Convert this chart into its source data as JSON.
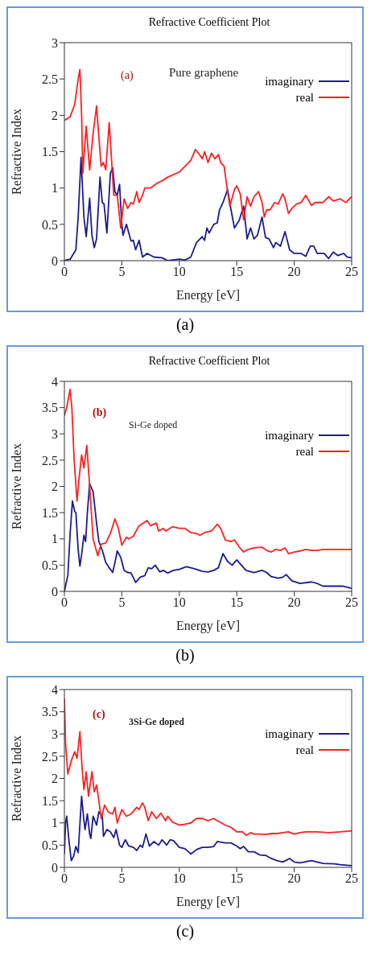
{
  "chart_data": [
    {
      "type": "line",
      "title": "Refractive Coefficient Plot",
      "xlabel": "Energy [eV]",
      "ylabel": "Refractive Index",
      "xlim": [
        0,
        25
      ],
      "xticks": [
        0,
        5,
        10,
        15,
        20,
        25
      ],
      "ylim": [
        0,
        3
      ],
      "yticks": [
        0,
        0.5,
        1,
        1.5,
        2,
        2.5,
        3
      ],
      "legend": "top right",
      "annotations": [
        "(a)",
        "Pure graphene",
        "(a)"
      ],
      "series": [
        {
          "name": "imaginary",
          "color": "#1c1c8f",
          "x": [
            0,
            0.5,
            1.0,
            1.2,
            1.45,
            1.7,
            1.9,
            2.2,
            2.4,
            2.6,
            2.8,
            3.1,
            3.3,
            3.45,
            3.7,
            4.0,
            4.2,
            4.4,
            4.6,
            4.8,
            5.0,
            5.1,
            5.4,
            5.8,
            6.0,
            6.2,
            6.5,
            6.8,
            7.2,
            7.8,
            8.5,
            9.0,
            10,
            10.5,
            11.0,
            11.5,
            12,
            12.2,
            12.4,
            12.6,
            13,
            13.3,
            13.5,
            13.8,
            14.2,
            14.5,
            14.8,
            15.2,
            15.6,
            15.9,
            16.2,
            16.5,
            16.8,
            17.2,
            17.5,
            17.8,
            18.2,
            18.4,
            18.8,
            19.2,
            19.6,
            20,
            20.6,
            21,
            21.4,
            21.7,
            22,
            22.6,
            23,
            23.4,
            23.8,
            24.3,
            24.6,
            25
          ],
          "values": [
            0,
            0.02,
            0.15,
            0.6,
            1.42,
            0.6,
            0.33,
            0.86,
            0.35,
            0.18,
            0.3,
            1.15,
            0.8,
            0.78,
            0.38,
            1.2,
            1.28,
            0.95,
            0.9,
            1.05,
            0.5,
            0.35,
            0.5,
            0.27,
            0.28,
            0.15,
            0.28,
            0.05,
            0.1,
            0.05,
            0.04,
            0,
            0.02,
            0.01,
            0.05,
            0.25,
            0.33,
            0.28,
            0.45,
            0.38,
            0.5,
            0.52,
            0.7,
            0.8,
            0.98,
            0.7,
            0.45,
            0.55,
            0.75,
            0.3,
            0.45,
            0.3,
            0.35,
            0.6,
            0.32,
            0.3,
            0.18,
            0.25,
            0.2,
            0.4,
            0.15,
            0.1,
            0.1,
            0.06,
            0.2,
            0.2,
            0.1,
            0.1,
            0.03,
            0.12,
            0.07,
            0.1,
            0.05,
            0.04
          ]
        },
        {
          "name": "real",
          "color": "#ff2020",
          "x": [
            0,
            0.5,
            0.9,
            1.2,
            1.35,
            1.5,
            1.6,
            1.9,
            2.2,
            2.5,
            2.8,
            3.0,
            3.2,
            3.4,
            3.6,
            3.9,
            4.1,
            4.3,
            4.6,
            4.9,
            5.2,
            5.5,
            5.8,
            6.0,
            6.3,
            6.5,
            6.8,
            7.0,
            7.5,
            8.0,
            8.5,
            9.0,
            10,
            10.5,
            11,
            11.4,
            11.8,
            12,
            12.2,
            12.5,
            12.8,
            13.1,
            13.4,
            13.6,
            13.9,
            14.2,
            14.4,
            14.8,
            15,
            15.3,
            15.6,
            15.9,
            16.2,
            16.5,
            16.9,
            17.2,
            17.4,
            17.6,
            17.9,
            18.3,
            18.6,
            19,
            19.2,
            19.5,
            19.8,
            20.2,
            20.6,
            21,
            21.5,
            21.8,
            22.5,
            23,
            23.4,
            24,
            24.5,
            25
          ],
          "values": [
            1.93,
            1.98,
            2.15,
            2.5,
            2.63,
            2.0,
            1.2,
            1.85,
            1.25,
            1.75,
            2.13,
            1.7,
            1.3,
            1.35,
            1.25,
            1.9,
            1.4,
            0.9,
            0.9,
            0.45,
            0.85,
            0.72,
            0.8,
            0.78,
            0.95,
            0.8,
            0.9,
            1.0,
            1.0,
            1.06,
            1.1,
            1.15,
            1.22,
            1.3,
            1.38,
            1.53,
            1.45,
            1.4,
            1.5,
            1.35,
            1.48,
            1.4,
            1.46,
            1.35,
            1.3,
            0.95,
            0.75,
            0.98,
            1.03,
            0.92,
            0.56,
            0.88,
            0.75,
            0.88,
            0.95,
            0.8,
            0.6,
            0.7,
            0.7,
            0.8,
            0.78,
            0.92,
            0.85,
            0.65,
            0.72,
            0.78,
            0.8,
            0.9,
            0.76,
            0.8,
            0.8,
            0.88,
            0.82,
            0.85,
            0.8,
            0.88
          ]
        }
      ]
    },
    {
      "type": "line",
      "title": "Refractive Coefficient Plot",
      "xlabel": "Energy [eV]",
      "ylabel": "Refractive Index",
      "xlim": [
        0,
        25
      ],
      "xticks": [
        0,
        5,
        10,
        15,
        20,
        25
      ],
      "ylim": [
        0,
        4
      ],
      "yticks": [
        0,
        0.5,
        1,
        1.5,
        2,
        2.5,
        3,
        3.5,
        4
      ],
      "legend": "top right",
      "annotations": [
        "(b)",
        "Si-Ge doped",
        "(b)"
      ],
      "series": [
        {
          "name": "imaginary",
          "color": "#1c1c8f",
          "x": [
            0,
            0.3,
            0.5,
            0.7,
            0.9,
            1.0,
            1.2,
            1.35,
            1.5,
            1.7,
            1.85,
            2.0,
            2.2,
            2.5,
            2.8,
            3.0,
            3.3,
            3.6,
            3.9,
            4.2,
            4.4,
            4.6,
            4.9,
            5.2,
            5.5,
            5.8,
            6.2,
            6.6,
            7.0,
            7.3,
            7.6,
            7.9,
            8.3,
            8.6,
            9.0,
            9.5,
            10,
            10.6,
            11,
            11.5,
            12,
            12.5,
            13,
            13.4,
            13.8,
            14.2,
            14.6,
            15,
            15.4,
            15.8,
            16.5,
            17.2,
            17.6,
            18,
            18.6,
            19,
            19.3,
            19.8,
            20.5,
            21.5,
            22,
            22.5,
            23.5,
            24.2,
            25
          ],
          "values": [
            0,
            0.3,
            1.1,
            1.72,
            1.52,
            1.5,
            0.8,
            0.48,
            0.7,
            1.07,
            0.95,
            1.5,
            2.05,
            1.9,
            1.3,
            0.95,
            0.78,
            0.55,
            0.45,
            0.36,
            0.55,
            0.77,
            0.65,
            0.4,
            0.36,
            0.35,
            0.17,
            0.27,
            0.3,
            0.45,
            0.43,
            0.5,
            0.37,
            0.4,
            0.35,
            0.4,
            0.42,
            0.47,
            0.45,
            0.42,
            0.38,
            0.37,
            0.4,
            0.45,
            0.72,
            0.57,
            0.5,
            0.6,
            0.5,
            0.4,
            0.36,
            0.4,
            0.36,
            0.28,
            0.25,
            0.27,
            0.32,
            0.2,
            0.15,
            0.18,
            0.15,
            0.1,
            0.1,
            0.1,
            0.06
          ]
        },
        {
          "name": "real",
          "color": "#ff2020",
          "x": [
            0,
            0.2,
            0.5,
            0.65,
            0.85,
            1.1,
            1.3,
            1.5,
            1.7,
            1.95,
            2.2,
            2.5,
            2.9,
            3.2,
            3.6,
            4.0,
            4.4,
            4.7,
            5.0,
            5.4,
            5.6,
            6.0,
            6.5,
            7.2,
            7.5,
            8.0,
            8.2,
            8.6,
            8.8,
            9.4,
            10,
            10.5,
            11,
            11.5,
            11.8,
            12.2,
            12.8,
            13.3,
            13.6,
            14,
            14.5,
            14.8,
            15.2,
            15.6,
            16,
            16.5,
            17.2,
            17.6,
            18,
            18.4,
            18.8,
            19.2,
            19.5,
            20,
            20.5,
            21,
            21.5,
            22,
            22.5,
            23,
            24,
            25
          ],
          "values": [
            3.35,
            3.5,
            3.85,
            3.5,
            2.5,
            1.72,
            2.2,
            2.6,
            2.35,
            2.78,
            2.0,
            1.0,
            0.68,
            0.9,
            0.92,
            1.1,
            1.38,
            1.2,
            0.88,
            1.03,
            1.0,
            1.05,
            1.25,
            1.35,
            1.25,
            1.3,
            1.15,
            1.2,
            1.15,
            1.23,
            1.2,
            1.2,
            1.12,
            1.1,
            1.07,
            1.12,
            1.15,
            1.28,
            1.2,
            0.98,
            0.95,
            0.98,
            0.85,
            0.75,
            0.8,
            0.83,
            0.84,
            0.78,
            0.75,
            0.8,
            0.78,
            0.83,
            0.72,
            0.75,
            0.77,
            0.8,
            0.78,
            0.78,
            0.8,
            0.8,
            0.8,
            0.8
          ]
        }
      ]
    },
    {
      "type": "line",
      "xlabel": "Energy [eV]",
      "ylabel": "Refractive Index",
      "xlim": [
        0,
        25
      ],
      "xticks": [
        0,
        5,
        10,
        15,
        20,
        25
      ],
      "ylim": [
        0,
        4
      ],
      "yticks": [
        0,
        0.5,
        1,
        1.5,
        2,
        2.5,
        3,
        3.5,
        4
      ],
      "legend": "top right",
      "annotations": [
        "(c)",
        "3Si-Ge doped",
        "(c)"
      ],
      "series": [
        {
          "name": "imaginary",
          "color": "#1c1c8f",
          "x": [
            0,
            0.1,
            0.2,
            0.4,
            0.6,
            0.8,
            1.0,
            1.2,
            1.5,
            1.7,
            1.8,
            2.0,
            2.2,
            2.3,
            2.5,
            2.8,
            3.0,
            3.3,
            3.4,
            3.7,
            4.0,
            4.3,
            4.5,
            4.8,
            5.0,
            5.3,
            5.6,
            6.0,
            6.3,
            6.6,
            6.8,
            7.1,
            7.4,
            7.8,
            8.2,
            8.5,
            8.9,
            9.2,
            9.5,
            10,
            10.5,
            11,
            11.5,
            12,
            12.5,
            13,
            13.3,
            14,
            14.5,
            15,
            15.3,
            15.6,
            16,
            16.5,
            17,
            17.5,
            18,
            18.5,
            19,
            19.6,
            20,
            20.5,
            21.5,
            22,
            22.5,
            23.5,
            24,
            25
          ],
          "values": [
            0.3,
            1.0,
            1.15,
            0.6,
            0.15,
            0.25,
            0.47,
            0.33,
            1.6,
            1.05,
            0.85,
            1.2,
            0.75,
            0.65,
            1.15,
            0.95,
            1.25,
            1.15,
            0.7,
            0.85,
            0.8,
            0.67,
            0.85,
            0.5,
            0.45,
            0.62,
            0.48,
            0.45,
            0.38,
            0.5,
            0.45,
            0.75,
            0.48,
            0.58,
            0.5,
            0.62,
            0.5,
            0.62,
            0.6,
            0.45,
            0.42,
            0.3,
            0.4,
            0.45,
            0.45,
            0.47,
            0.58,
            0.55,
            0.55,
            0.48,
            0.42,
            0.47,
            0.35,
            0.35,
            0.28,
            0.27,
            0.2,
            0.15,
            0.12,
            0.2,
            0.12,
            0.1,
            0.15,
            0.12,
            0.09,
            0.08,
            0.06,
            0.04
          ]
        },
        {
          "name": "real",
          "color": "#ff2020",
          "x": [
            0,
            0.1,
            0.3,
            0.6,
            0.9,
            1.1,
            1.35,
            1.55,
            1.7,
            1.9,
            2.1,
            2.4,
            2.6,
            2.8,
            3.0,
            3.2,
            3.5,
            3.8,
            4.2,
            4.4,
            4.6,
            5.0,
            5.4,
            5.8,
            6.3,
            6.5,
            6.8,
            7.0,
            7.3,
            7.6,
            8.0,
            8.4,
            8.8,
            9.0,
            9.4,
            10,
            10.5,
            11,
            11.5,
            12,
            12.5,
            13,
            13.3,
            14,
            14.5,
            15,
            15.5,
            15.8,
            16.2,
            16.5,
            17,
            17.5,
            18,
            18.5,
            19,
            19.5,
            20,
            20.5,
            21,
            22,
            23,
            24,
            25
          ],
          "values": [
            3.8,
            2.8,
            2.1,
            2.4,
            2.6,
            2.45,
            3.05,
            2.2,
            1.75,
            2.15,
            1.6,
            2.15,
            1.7,
            1.85,
            1.5,
            1.1,
            1.4,
            1.25,
            1.2,
            1.35,
            1.0,
            1.3,
            1.15,
            1.2,
            1.35,
            1.3,
            1.45,
            1.35,
            1.05,
            1.25,
            1.1,
            1.22,
            1.05,
            1.15,
            1.02,
            0.95,
            0.97,
            1.0,
            1.1,
            1.1,
            1.05,
            1.1,
            1.05,
            0.95,
            0.9,
            0.8,
            0.8,
            0.72,
            0.78,
            0.75,
            0.75,
            0.74,
            0.76,
            0.76,
            0.78,
            0.8,
            0.75,
            0.78,
            0.8,
            0.8,
            0.78,
            0.8,
            0.82
          ]
        }
      ]
    }
  ]
}
